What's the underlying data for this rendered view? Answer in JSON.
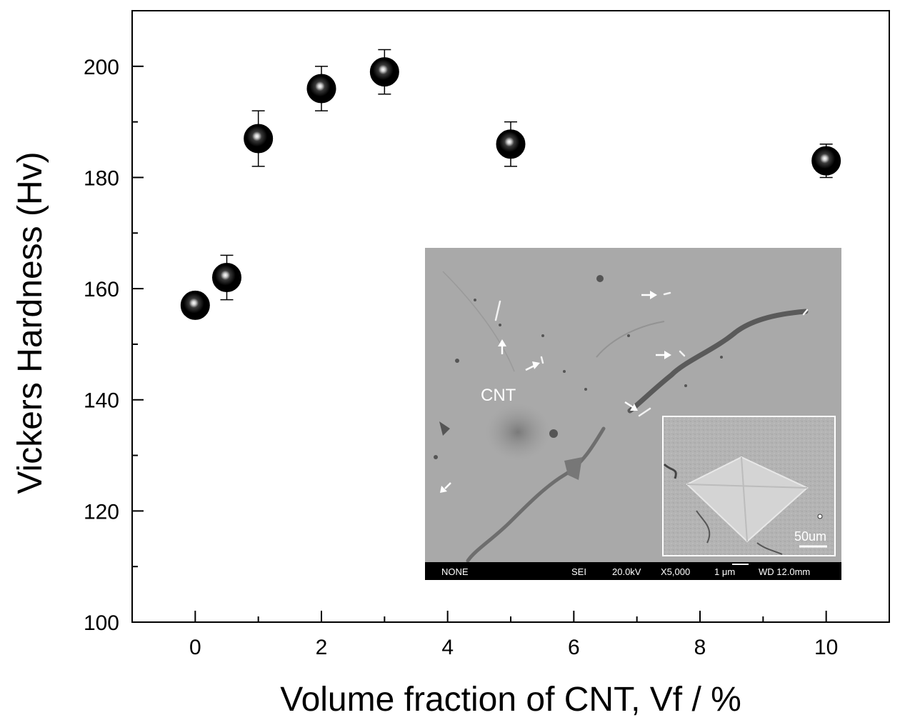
{
  "chart_data": {
    "type": "scatter",
    "title": "",
    "xlabel": "Volume fraction of CNT, Vf / %",
    "ylabel": "Vickers Hardness (Hv)",
    "xlim": [
      -1,
      11
    ],
    "ylim": [
      100,
      210
    ],
    "x_ticks": [
      0,
      2,
      4,
      6,
      8,
      10
    ],
    "y_ticks": [
      100,
      120,
      140,
      160,
      180,
      200
    ],
    "grid": false,
    "legend": "none",
    "series": [
      {
        "marker_color": "#000000",
        "points": [
          {
            "x": 0,
            "y": 157,
            "err_low": 157,
            "err_high": 157
          },
          {
            "x": 0.5,
            "y": 162,
            "err_low": 158,
            "err_high": 166
          },
          {
            "x": 1,
            "y": 187,
            "err_low": 182,
            "err_high": 192
          },
          {
            "x": 2,
            "y": 196,
            "err_low": 192,
            "err_high": 200
          },
          {
            "x": 3,
            "y": 199,
            "err_low": 195,
            "err_high": 203
          },
          {
            "x": 5,
            "y": 186,
            "err_low": 182,
            "err_high": 190
          },
          {
            "x": 10,
            "y": 183,
            "err_low": 180,
            "err_high": 186
          }
        ]
      }
    ],
    "inset_sem": {
      "label": "CNT",
      "scale_label": "50um",
      "footer": [
        "NONE",
        "SEI",
        "20.0kV",
        "X5,000",
        "1 μm",
        "WD 12.0mm"
      ]
    }
  }
}
